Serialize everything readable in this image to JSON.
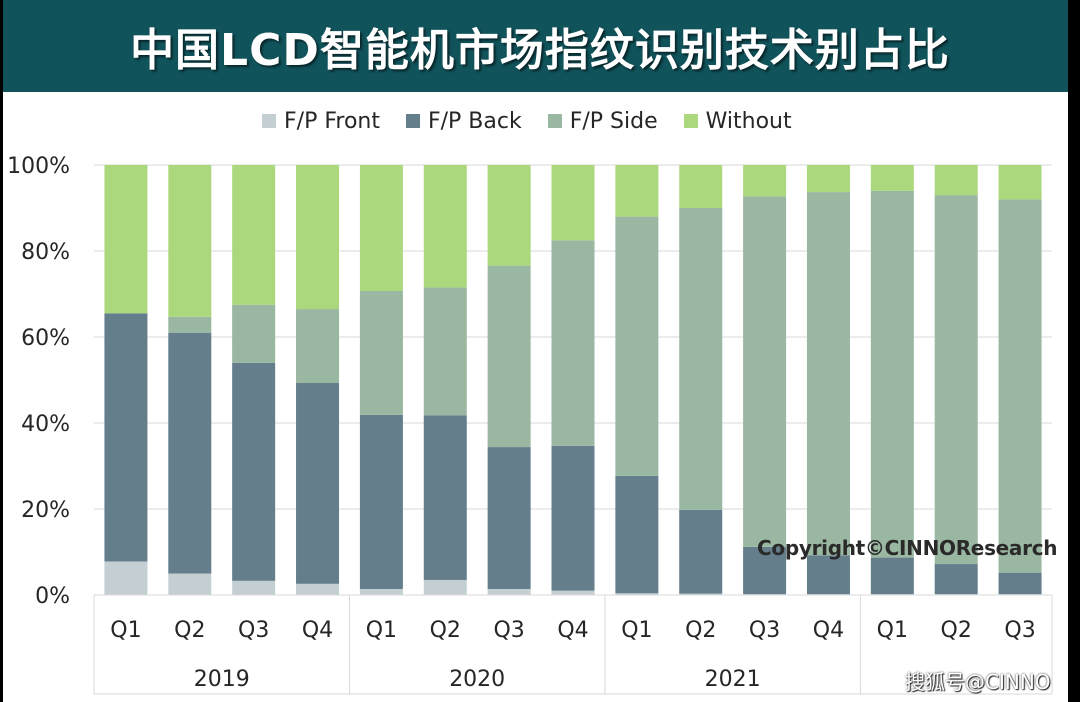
{
  "title": "中国LCD智能机市场指纹识别技术别占比",
  "colors": {
    "title_band": "#11535b",
    "fp_front": "#c3cfd3",
    "fp_back": "#647e8c",
    "fp_side": "#9ab7a1",
    "without": "#acd87d"
  },
  "copyright": "Copyright©CINNOResearch",
  "watermark": "搜狐号@CINNO",
  "chart_data": {
    "type": "bar",
    "stacked": true,
    "categories": [
      "Q1",
      "Q2",
      "Q3",
      "Q4",
      "Q1",
      "Q2",
      "Q3",
      "Q4",
      "Q1",
      "Q2",
      "Q3",
      "Q4",
      "Q1",
      "Q2",
      "Q3"
    ],
    "groups": [
      {
        "label": "2019",
        "count": 4
      },
      {
        "label": "2020",
        "count": 4
      },
      {
        "label": "2021",
        "count": 4
      },
      {
        "label": "",
        "count": 3
      }
    ],
    "series": [
      {
        "name": "F/P Front",
        "color": "#c3cfd3",
        "values": [
          7.8,
          5.0,
          3.3,
          2.6,
          1.4,
          3.5,
          1.4,
          1.0,
          0.4,
          0.3,
          0.2,
          0.2,
          0.2,
          0.2,
          0.2
        ]
      },
      {
        "name": "F/P Back",
        "color": "#647e8c",
        "values": [
          57.7,
          56.0,
          50.7,
          46.7,
          40.5,
          38.3,
          33.0,
          33.7,
          27.3,
          19.5,
          11.0,
          9.0,
          8.5,
          7.0,
          5.0
        ]
      },
      {
        "name": "F/P Side",
        "color": "#9ab7a1",
        "values": [
          0.0,
          3.7,
          13.5,
          17.2,
          28.8,
          29.7,
          42.2,
          47.8,
          60.3,
          70.2,
          81.5,
          84.5,
          85.3,
          85.8,
          86.8
        ]
      },
      {
        "name": "Without",
        "color": "#acd87d",
        "values": [
          34.5,
          35.3,
          32.5,
          33.5,
          29.3,
          28.5,
          23.4,
          17.5,
          12.0,
          10.0,
          7.3,
          6.3,
          6.0,
          7.0,
          8.0
        ]
      }
    ],
    "y_ticks": [
      "0%",
      "20%",
      "40%",
      "60%",
      "80%",
      "100%"
    ],
    "y_tick_values": [
      0,
      20,
      40,
      60,
      80,
      100
    ],
    "ylim": [
      0,
      100
    ],
    "grid": true,
    "legend_position": "top"
  }
}
